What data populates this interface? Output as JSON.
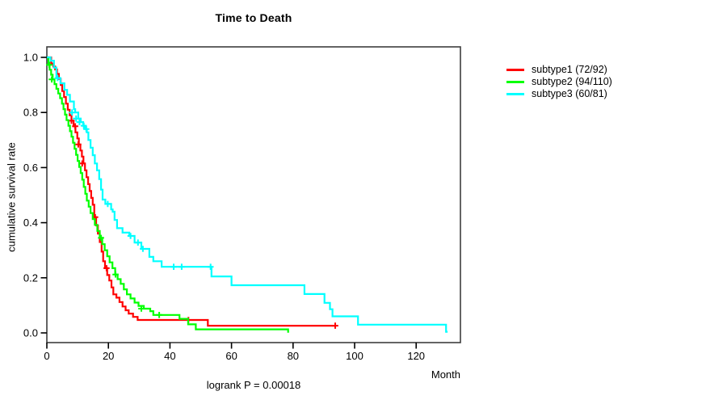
{
  "page": {
    "background": "#ffffff",
    "plot_box_color": "#3d3d3d"
  },
  "chart_data": {
    "type": "line",
    "variant": "kaplan-meier-step-survival",
    "title": "Time to Death",
    "xlabel": "Month",
    "ylabel": "cumulative survival rate",
    "annotation": "logrank P = 0.00018",
    "xlim": [
      0,
      134.4
    ],
    "ylim": [
      -0.04,
      1.04
    ],
    "xticks": [
      0,
      20,
      40,
      60,
      80,
      100,
      120
    ],
    "yticks": [
      0.0,
      0.2,
      0.4,
      0.6,
      0.8,
      1.0
    ],
    "grid": false,
    "legend_position": "right-outside",
    "series": [
      {
        "name": "subtype1 (72/92)",
        "color": "#ff0000",
        "end": 93.7,
        "steps": [
          [
            0,
            1.0
          ],
          [
            1.4,
            0.978
          ],
          [
            2.1,
            0.967
          ],
          [
            2.7,
            0.956
          ],
          [
            3.3,
            0.94
          ],
          [
            3.9,
            0.922
          ],
          [
            4.5,
            0.9
          ],
          [
            5.0,
            0.878
          ],
          [
            5.6,
            0.856
          ],
          [
            6.2,
            0.832
          ],
          [
            6.8,
            0.81
          ],
          [
            7.4,
            0.79
          ],
          [
            8.0,
            0.77
          ],
          [
            8.7,
            0.75
          ],
          [
            9.3,
            0.728
          ],
          [
            9.9,
            0.706
          ],
          [
            10.4,
            0.684
          ],
          [
            10.9,
            0.662
          ],
          [
            11.4,
            0.64
          ],
          [
            11.9,
            0.615
          ],
          [
            12.4,
            0.59
          ],
          [
            12.9,
            0.565
          ],
          [
            13.4,
            0.54
          ],
          [
            13.9,
            0.515
          ],
          [
            14.4,
            0.49
          ],
          [
            14.9,
            0.465
          ],
          [
            15.4,
            0.42
          ],
          [
            16.0,
            0.39
          ],
          [
            16.6,
            0.36
          ],
          [
            17.2,
            0.33
          ],
          [
            17.8,
            0.295
          ],
          [
            18.3,
            0.26
          ],
          [
            18.9,
            0.235
          ],
          [
            19.6,
            0.21
          ],
          [
            20.3,
            0.19
          ],
          [
            21.0,
            0.165
          ],
          [
            21.6,
            0.14
          ],
          [
            22.6,
            0.128
          ],
          [
            23.6,
            0.112
          ],
          [
            24.6,
            0.096
          ],
          [
            25.6,
            0.082
          ],
          [
            26.6,
            0.07
          ],
          [
            28.0,
            0.058
          ],
          [
            29.5,
            0.047
          ],
          [
            52.3,
            0.026
          ]
        ],
        "censors": [
          [
            8.0,
            0.77
          ],
          [
            9.2,
            0.75
          ],
          [
            10.2,
            0.684
          ],
          [
            11.5,
            0.615
          ],
          [
            15.7,
            0.42
          ],
          [
            19.4,
            0.235
          ],
          [
            46.0,
            0.047
          ],
          [
            93.7,
            0.026
          ]
        ]
      },
      {
        "name": "subtype2 (94/110)",
        "color": "#00ff00",
        "end": 78.7,
        "steps": [
          [
            0,
            1.0
          ],
          [
            0.5,
            0.973
          ],
          [
            0.9,
            0.955
          ],
          [
            1.4,
            0.937
          ],
          [
            1.9,
            0.92
          ],
          [
            2.5,
            0.903
          ],
          [
            3.1,
            0.886
          ],
          [
            3.7,
            0.869
          ],
          [
            4.3,
            0.852
          ],
          [
            4.9,
            0.832
          ],
          [
            5.4,
            0.812
          ],
          [
            5.9,
            0.792
          ],
          [
            6.4,
            0.772
          ],
          [
            7.0,
            0.752
          ],
          [
            7.5,
            0.732
          ],
          [
            8.0,
            0.712
          ],
          [
            8.5,
            0.69
          ],
          [
            9.0,
            0.668
          ],
          [
            9.5,
            0.646
          ],
          [
            10.0,
            0.624
          ],
          [
            10.5,
            0.602
          ],
          [
            11.0,
            0.58
          ],
          [
            11.5,
            0.556
          ],
          [
            12.0,
            0.53
          ],
          [
            12.5,
            0.505
          ],
          [
            13.0,
            0.48
          ],
          [
            13.6,
            0.458
          ],
          [
            14.2,
            0.435
          ],
          [
            14.9,
            0.413
          ],
          [
            15.6,
            0.392
          ],
          [
            16.4,
            0.37
          ],
          [
            17.2,
            0.345
          ],
          [
            18.0,
            0.322
          ],
          [
            18.8,
            0.3
          ],
          [
            19.6,
            0.278
          ],
          [
            20.4,
            0.256
          ],
          [
            21.3,
            0.235
          ],
          [
            22.2,
            0.212
          ],
          [
            23.0,
            0.195
          ],
          [
            24.0,
            0.178
          ],
          [
            25.0,
            0.158
          ],
          [
            26.0,
            0.14
          ],
          [
            27.2,
            0.125
          ],
          [
            28.5,
            0.11
          ],
          [
            29.8,
            0.098
          ],
          [
            31.5,
            0.088
          ],
          [
            33.6,
            0.079
          ],
          [
            34.6,
            0.065
          ],
          [
            43.1,
            0.051
          ],
          [
            45.9,
            0.031
          ],
          [
            48.4,
            0.013
          ],
          [
            78.4,
            0.004
          ]
        ],
        "censors": [
          [
            0.8,
            0.973
          ],
          [
            1.6,
            0.92
          ],
          [
            17.6,
            0.345
          ],
          [
            22.3,
            0.212
          ],
          [
            30.7,
            0.088
          ],
          [
            36.5,
            0.065
          ]
        ]
      },
      {
        "name": "subtype3 (60/81)",
        "color": "#00ffff",
        "end": 130.2,
        "steps": [
          [
            0,
            1.0
          ],
          [
            1.2,
            0.988
          ],
          [
            2.3,
            0.963
          ],
          [
            3.1,
            0.925
          ],
          [
            4.4,
            0.906
          ],
          [
            5.7,
            0.882
          ],
          [
            6.6,
            0.864
          ],
          [
            7.5,
            0.84
          ],
          [
            8.8,
            0.812
          ],
          [
            9.2,
            0.8
          ],
          [
            10.2,
            0.778
          ],
          [
            11.0,
            0.765
          ],
          [
            11.8,
            0.752
          ],
          [
            12.5,
            0.74
          ],
          [
            13.0,
            0.728
          ],
          [
            13.5,
            0.7
          ],
          [
            14.2,
            0.672
          ],
          [
            14.9,
            0.645
          ],
          [
            15.6,
            0.615
          ],
          [
            16.3,
            0.59
          ],
          [
            17.0,
            0.558
          ],
          [
            17.6,
            0.52
          ],
          [
            18.1,
            0.484
          ],
          [
            19.0,
            0.468
          ],
          [
            20.9,
            0.448
          ],
          [
            21.4,
            0.44
          ],
          [
            22.0,
            0.41
          ],
          [
            22.8,
            0.38
          ],
          [
            24.6,
            0.364
          ],
          [
            26.8,
            0.352
          ],
          [
            28.5,
            0.328
          ],
          [
            30.7,
            0.305
          ],
          [
            33.3,
            0.276
          ],
          [
            34.6,
            0.26
          ],
          [
            37.3,
            0.24
          ],
          [
            53.5,
            0.205
          ],
          [
            60.0,
            0.173
          ],
          [
            83.7,
            0.141
          ],
          [
            90.2,
            0.109
          ],
          [
            92.0,
            0.086
          ],
          [
            92.8,
            0.06
          ],
          [
            101.1,
            0.03
          ],
          [
            129.7,
            0.004
          ]
        ],
        "censors": [
          [
            3.5,
            0.925
          ],
          [
            8.2,
            0.8
          ],
          [
            9.5,
            0.778
          ],
          [
            10.6,
            0.765
          ],
          [
            12.0,
            0.752
          ],
          [
            12.8,
            0.74
          ],
          [
            19.8,
            0.468
          ],
          [
            27.2,
            0.352
          ],
          [
            29.6,
            0.328
          ],
          [
            31.2,
            0.305
          ],
          [
            41.2,
            0.24
          ],
          [
            43.8,
            0.24
          ],
          [
            53.2,
            0.24
          ]
        ]
      }
    ]
  }
}
